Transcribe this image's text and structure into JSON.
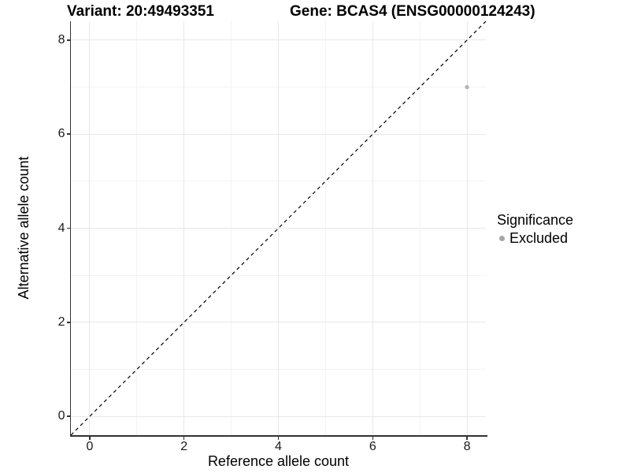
{
  "page": {
    "background": "#ffffff"
  },
  "chart_data": {
    "type": "scatter",
    "titles": {
      "left": "Variant: 20:49493351",
      "right": "Gene: BCAS4 (ENSG00000124243)"
    },
    "xlabel": "Reference allele count",
    "ylabel": "Alternative allele count",
    "xlim": [
      -0.4,
      8.4
    ],
    "ylim": [
      -0.4,
      8.4
    ],
    "x_ticks": [
      0,
      2,
      4,
      6,
      8
    ],
    "y_ticks": [
      0,
      2,
      4,
      6,
      8
    ],
    "grid": "on",
    "grid_major": [
      0,
      2,
      4,
      6,
      8
    ],
    "grid_minor": [
      1,
      3,
      5,
      7
    ],
    "legend": {
      "title": "Significance",
      "position": "right",
      "entries": [
        {
          "label": "Excluded",
          "color": "#a6a6a6"
        }
      ]
    },
    "series": [
      {
        "name": "Excluded",
        "color": "#b3b3b3",
        "points": [
          {
            "x": 8,
            "y": 7
          }
        ]
      }
    ],
    "identity_line": {
      "style": "dashed",
      "from": [
        -0.4,
        -0.4
      ],
      "to": [
        8.4,
        8.4
      ],
      "color": "#000000"
    },
    "colors": {
      "axis_line": "#333333",
      "grid_major": "#e8e8e8",
      "grid_minor": "#f3f3f3",
      "tick": "#333333",
      "text": "#000000"
    }
  }
}
